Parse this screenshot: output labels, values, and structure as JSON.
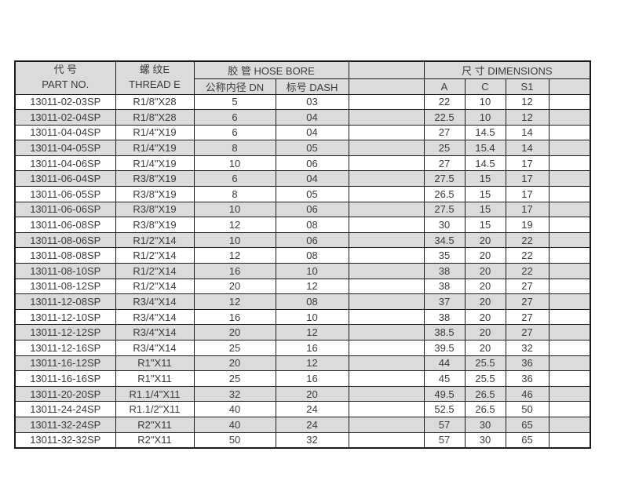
{
  "table": {
    "header": {
      "part_no_zh": "代 号",
      "part_no_en": "PART NO.",
      "thread_zh": "螺 纹E",
      "thread_en": "THREAD E",
      "hose_bore": "胶 管 HOSE BORE",
      "dn": "公称内径 DN",
      "dash": "标号 DASH",
      "dimensions": "尺 寸 DIMENSIONS",
      "col_a": "A",
      "col_c": "C",
      "col_s1": "S1"
    },
    "rows": [
      {
        "part_no": "13011-02-03SP",
        "thread": "R1/8\"X28",
        "dn": "5",
        "dash": "03",
        "a": "22",
        "c": "10",
        "s1": "12"
      },
      {
        "part_no": "13011-02-04SP",
        "thread": "R1/8\"X28",
        "dn": "6",
        "dash": "04",
        "a": "22.5",
        "c": "10",
        "s1": "12"
      },
      {
        "part_no": "13011-04-04SP",
        "thread": "R1/4\"X19",
        "dn": "6",
        "dash": "04",
        "a": "27",
        "c": "14.5",
        "s1": "14"
      },
      {
        "part_no": "13011-04-05SP",
        "thread": "R1/4\"X19",
        "dn": "8",
        "dash": "05",
        "a": "25",
        "c": "15.4",
        "s1": "14"
      },
      {
        "part_no": "13011-04-06SP",
        "thread": "R1/4\"X19",
        "dn": "10",
        "dash": "06",
        "a": "27",
        "c": "14.5",
        "s1": "17"
      },
      {
        "part_no": "13011-06-04SP",
        "thread": "R3/8\"X19",
        "dn": "6",
        "dash": "04",
        "a": "27.5",
        "c": "15",
        "s1": "17"
      },
      {
        "part_no": "13011-06-05SP",
        "thread": "R3/8\"X19",
        "dn": "8",
        "dash": "05",
        "a": "26.5",
        "c": "15",
        "s1": "17"
      },
      {
        "part_no": "13011-06-06SP",
        "thread": "R3/8\"X19",
        "dn": "10",
        "dash": "06",
        "a": "27.5",
        "c": "15",
        "s1": "17"
      },
      {
        "part_no": "13011-06-08SP",
        "thread": "R3/8\"X19",
        "dn": "12",
        "dash": "08",
        "a": "30",
        "c": "15",
        "s1": "19"
      },
      {
        "part_no": "13011-08-06SP",
        "thread": "R1/2\"X14",
        "dn": "10",
        "dash": "06",
        "a": "34.5",
        "c": "20",
        "s1": "22"
      },
      {
        "part_no": "13011-08-08SP",
        "thread": "R1/2\"X14",
        "dn": "12",
        "dash": "08",
        "a": "35",
        "c": "20",
        "s1": "22"
      },
      {
        "part_no": "13011-08-10SP",
        "thread": "R1/2\"X14",
        "dn": "16",
        "dash": "10",
        "a": "38",
        "c": "20",
        "s1": "22"
      },
      {
        "part_no": "13011-08-12SP",
        "thread": "R1/2\"X14",
        "dn": "20",
        "dash": "12",
        "a": "38",
        "c": "20",
        "s1": "27"
      },
      {
        "part_no": "13011-12-08SP",
        "thread": "R3/4\"X14",
        "dn": "12",
        "dash": "08",
        "a": "37",
        "c": "20",
        "s1": "27"
      },
      {
        "part_no": "13011-12-10SP",
        "thread": "R3/4\"X14",
        "dn": "16",
        "dash": "10",
        "a": "38",
        "c": "20",
        "s1": "27"
      },
      {
        "part_no": "13011-12-12SP",
        "thread": "R3/4\"X14",
        "dn": "20",
        "dash": "12",
        "a": "38.5",
        "c": "20",
        "s1": "27"
      },
      {
        "part_no": "13011-12-16SP",
        "thread": "R3/4\"X14",
        "dn": "25",
        "dash": "16",
        "a": "39.5",
        "c": "20",
        "s1": "32"
      },
      {
        "part_no": "13011-16-12SP",
        "thread": "R1\"X11",
        "dn": "20",
        "dash": "12",
        "a": "44",
        "c": "25.5",
        "s1": "36"
      },
      {
        "part_no": "13011-16-16SP",
        "thread": "R1\"X11",
        "dn": "25",
        "dash": "16",
        "a": "45",
        "c": "25.5",
        "s1": "36"
      },
      {
        "part_no": "13011-20-20SP",
        "thread": "R1.1/4\"X11",
        "dn": "32",
        "dash": "20",
        "a": "49.5",
        "c": "26.5",
        "s1": "46"
      },
      {
        "part_no": "13011-24-24SP",
        "thread": "R1.1/2\"X11",
        "dn": "40",
        "dash": "24",
        "a": "52.5",
        "c": "26.5",
        "s1": "50"
      },
      {
        "part_no": "13011-32-24SP",
        "thread": "R2\"X11",
        "dn": "40",
        "dash": "24",
        "a": "57",
        "c": "30",
        "s1": "65"
      },
      {
        "part_no": "13011-32-32SP",
        "thread": "R2\"X11",
        "dn": "50",
        "dash": "32",
        "a": "57",
        "c": "30",
        "s1": "65"
      }
    ]
  },
  "colors": {
    "border": "#1c1c1c",
    "header_bg": "#dbdbdb",
    "row_alt_bg": "#dbdbdb",
    "row_bg": "#ffffff",
    "text": "#3a3a3a"
  }
}
